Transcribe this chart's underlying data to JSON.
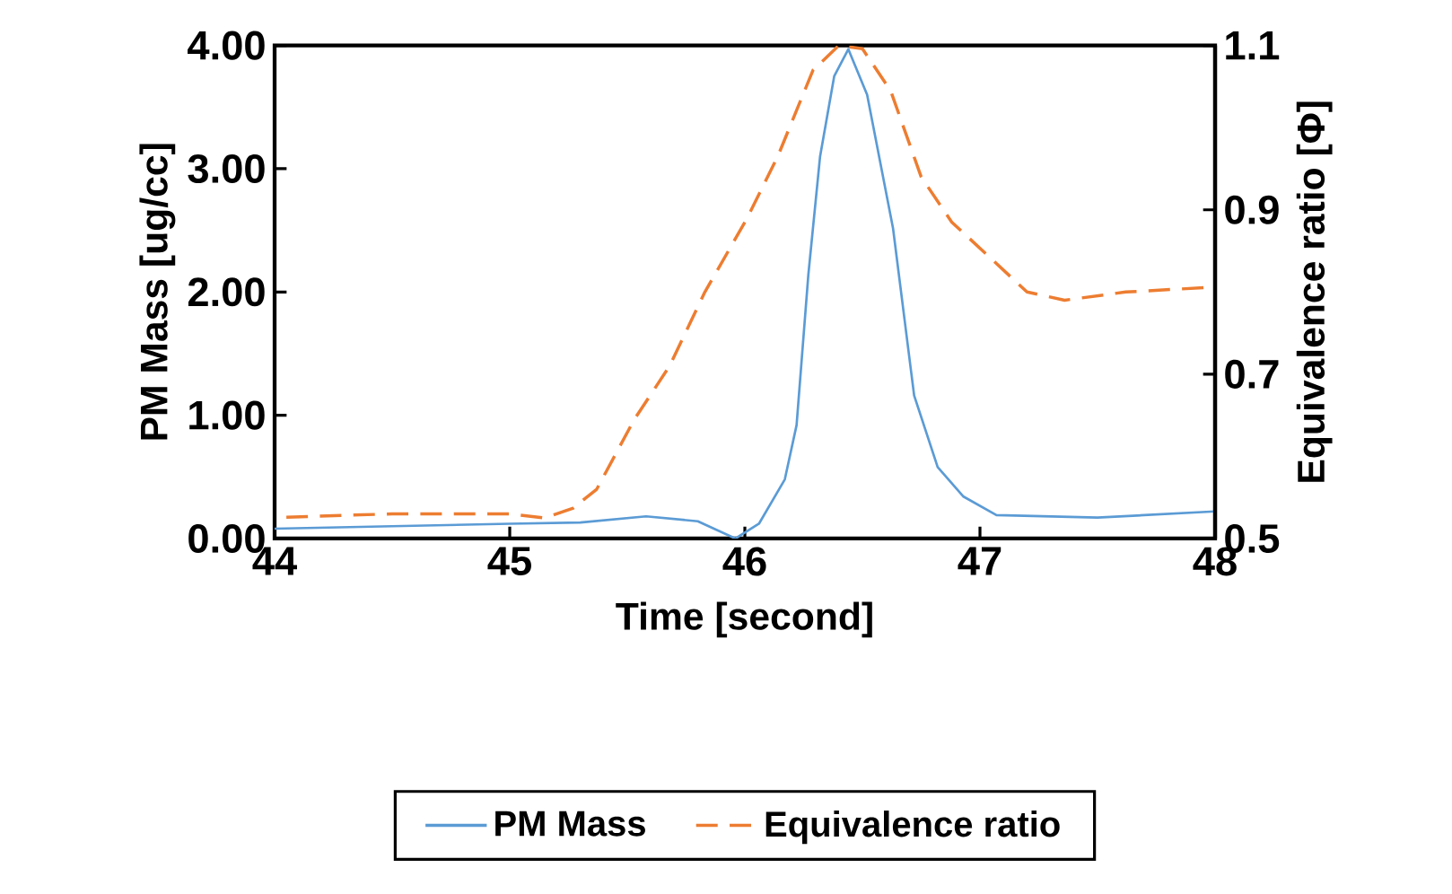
{
  "chart_data": {
    "type": "line",
    "xlabel": "Time [second]",
    "ylabel": "PM Mass [ug/cc]",
    "y2label": "Equivalence ratio [Φ]",
    "xlim": [
      44,
      48
    ],
    "xticks": [
      44,
      45,
      46,
      47,
      48
    ],
    "ylim": [
      0,
      4
    ],
    "yticks": [
      {
        "value": 0,
        "label": "0.00"
      },
      {
        "value": 1,
        "label": "1.00"
      },
      {
        "value": 2,
        "label": "2.00"
      },
      {
        "value": 3,
        "label": "3.00"
      },
      {
        "value": 4,
        "label": "4.00"
      }
    ],
    "y2lim": [
      0.5,
      1.1
    ],
    "y2ticks": [
      0.5,
      0.7,
      0.9,
      1.1
    ],
    "legend": "bottom",
    "marker": "none",
    "series": [
      {
        "name": "PM Mass",
        "color": "#5b9bd5",
        "line_style": "solid",
        "x": [
          44,
          44.5,
          45,
          45.3,
          45.58,
          45.8,
          45.96,
          46.06,
          46.17,
          46.22,
          46.27,
          46.32,
          46.38,
          46.44,
          46.52,
          46.63,
          46.72,
          46.82,
          46.93,
          47.07,
          47.5,
          48
        ],
        "values": [
          0.08,
          0.1,
          0.12,
          0.13,
          0.18,
          0.14,
          0.0,
          0.12,
          0.48,
          0.92,
          2.14,
          3.1,
          3.75,
          3.97,
          3.6,
          2.52,
          1.16,
          0.58,
          0.34,
          0.19,
          0.17,
          0.22
        ]
      },
      {
        "name": "Equivalence ratio",
        "color": "#ed7d31",
        "line_style": "dashed",
        "axis": "y2",
        "x": [
          44.05,
          44.5,
          45,
          45.15,
          45.27,
          45.37,
          45.53,
          45.68,
          45.83,
          46.01,
          46.14,
          46.29,
          46.4,
          46.5,
          46.62,
          46.75,
          46.88,
          47.05,
          47.2,
          47.36,
          47.62,
          48
        ],
        "values": [
          0.526,
          0.53,
          0.53,
          0.525,
          0.537,
          0.56,
          0.645,
          0.71,
          0.8,
          0.89,
          0.965,
          1.07,
          1.1,
          1.096,
          1.045,
          0.94,
          0.885,
          0.84,
          0.8,
          0.79,
          0.8,
          0.806
        ]
      }
    ]
  }
}
